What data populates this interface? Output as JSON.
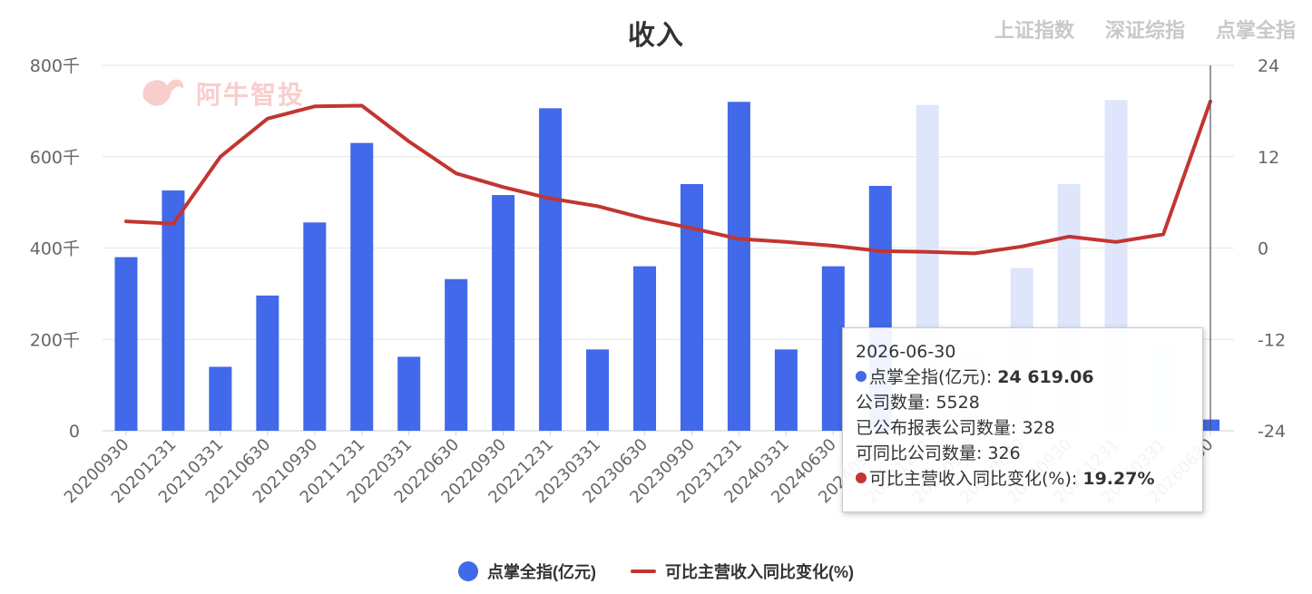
{
  "title": "收入",
  "index_tabs": [
    "上证指数",
    "深证综指",
    "点掌全指"
  ],
  "watermark": "阿牛智投",
  "colors": {
    "bar": "#4169e9",
    "bar_faded": "#dfe6fb",
    "line": "#c23531",
    "grid": "#e6e6e6",
    "axis_text": "#666666"
  },
  "chart_data": {
    "type": "bar",
    "categories": [
      "20200930",
      "20201231",
      "20210331",
      "20210630",
      "20210930",
      "20211231",
      "20220331",
      "20220630",
      "20220930",
      "20221231",
      "20230331",
      "20230630",
      "20230930",
      "20231231",
      "20240331",
      "20240630",
      "20240930",
      "20241231",
      "20250331",
      "20250630",
      "20250930",
      "20251231",
      "20260331",
      "20260630"
    ],
    "series": [
      {
        "name": "点掌全指(亿元)",
        "type": "bar",
        "axis": "left",
        "values": [
          380,
          526,
          140,
          296,
          456,
          630,
          162,
          332,
          516,
          706,
          178,
          360,
          540,
          720,
          178,
          360,
          536,
          713,
          170,
          356,
          540,
          724,
          182,
          24.6
        ]
      },
      {
        "name": "可比主营收入同比变化(%)",
        "type": "line",
        "axis": "right",
        "values": [
          3.5,
          3.2,
          12,
          17,
          18.6,
          18.7,
          14,
          9.8,
          8,
          6.5,
          5.5,
          3.9,
          2.6,
          1.2,
          0.8,
          0.3,
          -0.4,
          -0.5,
          -0.7,
          0.2,
          1.5,
          0.8,
          1.8,
          19.27
        ]
      }
    ],
    "y_left": {
      "ticks": [
        "0",
        "200千",
        "400千",
        "600千",
        "800千"
      ],
      "min": 0,
      "max": 800
    },
    "y_right": {
      "ticks": [
        "-24",
        "-12",
        "0",
        "12",
        "24"
      ],
      "min": -24,
      "max": 24
    },
    "hover_index": 23
  },
  "tooltip": {
    "date": "2026-06-30",
    "series1_label": "点掌全指(亿元)",
    "series1_value": "24 619.06",
    "company_count_label": "公司数量",
    "company_count": "5528",
    "published_label": "已公布报表公司数量",
    "published": "328",
    "comparable_label": "可同比公司数量",
    "comparable": "326",
    "series2_label": "可比主营收入同比变化(%)",
    "series2_value": "19.27%"
  },
  "legend": [
    {
      "label": "点掌全指(亿元)",
      "marker": "circle"
    },
    {
      "label": "可比主营收入同比变化(%)",
      "marker": "line"
    }
  ]
}
